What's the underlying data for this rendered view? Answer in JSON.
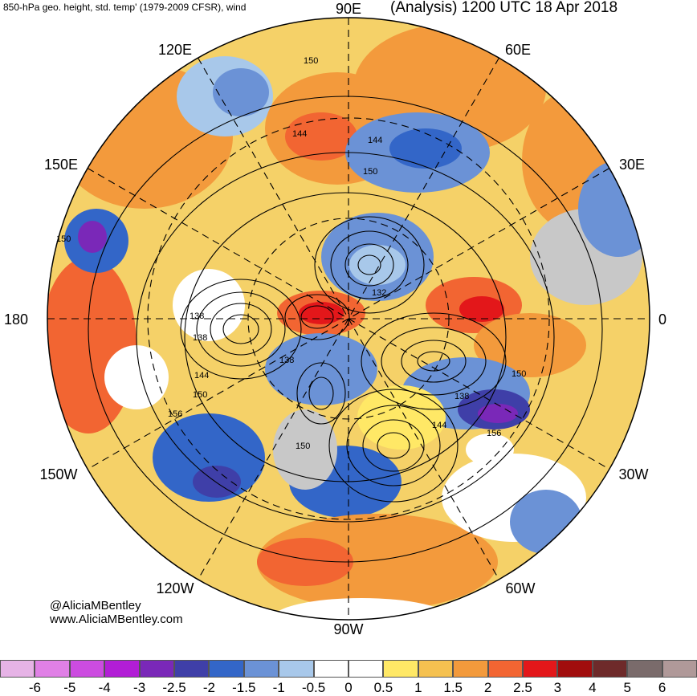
{
  "header": {
    "left_title": "850-hPa geo. height, std. temp' (1979-2009 CFSR), wind",
    "right_title": "(Analysis) 1200 UTC 18 Apr 2018"
  },
  "credits": {
    "handle": "@AliciaMBentley",
    "website": "www.AliciaMBentley.com"
  },
  "map": {
    "projection": "north-polar-stereographic",
    "longitude_labels": [
      "90E",
      "60E",
      "30E",
      "0",
      "30W",
      "60W",
      "90W",
      "120W",
      "150W",
      "180",
      "150E",
      "120E"
    ],
    "contour_labels": [
      "150",
      "144",
      "144",
      "150",
      "150",
      "132",
      "138",
      "138",
      "144",
      "150",
      "156",
      "138",
      "150",
      "156",
      "138",
      "144",
      "150"
    ]
  },
  "colorbar": {
    "colors": [
      "#e6b3e6",
      "#e080e6",
      "#cc4ce0",
      "#b21ed6",
      "#7a28b8",
      "#3f3fa8",
      "#3366c8",
      "#6b92d6",
      "#a8c8ea",
      "#ffffff",
      "#ffffff",
      "#ffe866",
      "#f5c150",
      "#f39a3c",
      "#f26532",
      "#e3171a",
      "#a10d0d",
      "#6e2a2a",
      "#7a6b6b",
      "#b09999"
    ],
    "tick_labels": [
      "-6",
      "-5",
      "-4",
      "-3",
      "-2.5",
      "-2",
      "-1.5",
      "-1",
      "-0.5",
      "0",
      "0.5",
      "1",
      "1.5",
      "2",
      "2.5",
      "3",
      "4",
      "5",
      "6"
    ]
  }
}
